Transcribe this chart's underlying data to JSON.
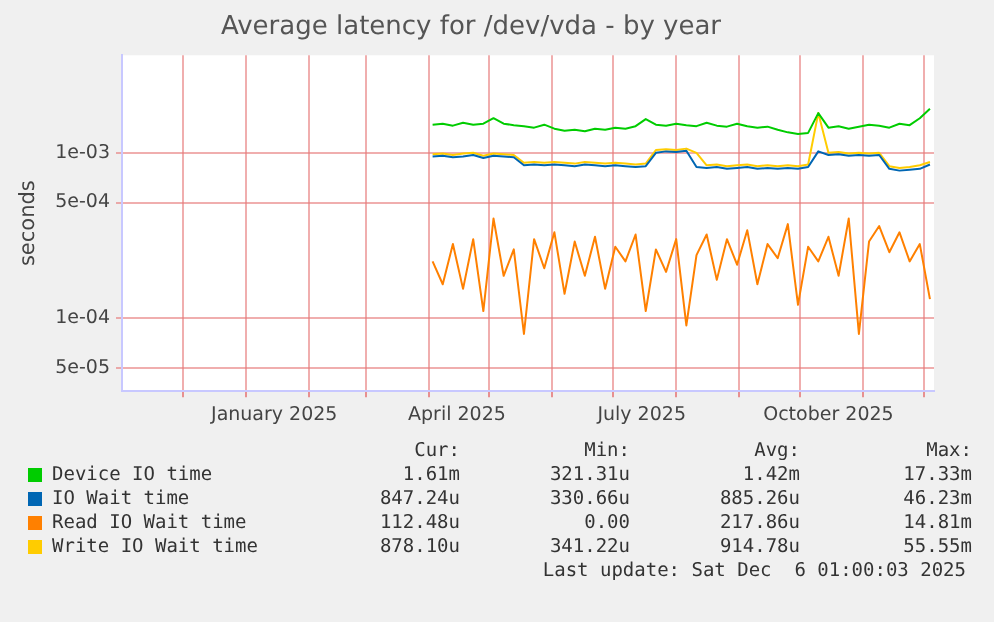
{
  "chart_data": {
    "type": "line",
    "title": "Average latency for /dev/vda - by year",
    "ylabel": "seconds",
    "log": "y",
    "grid": true,
    "legend": "bottom",
    "marker": "none",
    "line_style": "solid",
    "xlim": [
      "2024-11-01",
      "2025-12-06"
    ],
    "xticks": [
      {
        "value": "2024-12-01",
        "label": null
      },
      {
        "value": "2025-01-01",
        "label": null
      },
      {
        "value": "2025-02-01",
        "label": null
      },
      {
        "value": "2025-03-01",
        "label": null
      },
      {
        "value": "2025-04-01",
        "label": null
      },
      {
        "value": "2025-05-01",
        "label": null
      },
      {
        "value": "2025-06-01",
        "label": null
      },
      {
        "value": "2025-07-01",
        "label": null
      },
      {
        "value": "2025-08-01",
        "label": null
      },
      {
        "value": "2025-09-01",
        "label": null
      },
      {
        "value": "2025-10-01",
        "label": null
      },
      {
        "value": "2025-11-01",
        "label": null
      },
      {
        "value": "2025-12-01",
        "label": null
      },
      {
        "value": "2025-01-15",
        "label": "January 2025"
      },
      {
        "value": "2025-04-15",
        "label": "April 2025"
      },
      {
        "value": "2025-07-15",
        "label": "July 2025"
      },
      {
        "value": "2025-10-15",
        "label": "October 2025"
      }
    ],
    "ylim": [
      3.6e-05,
      0.0039
    ],
    "yticks": [
      {
        "value": 5e-05,
        "label": "5e-05"
      },
      {
        "value": 0.0001,
        "label": "1e-04"
      },
      {
        "value": 0.0005,
        "label": "5e-04"
      },
      {
        "value": 0.001,
        "label": "1e-03"
      }
    ],
    "x": [
      "2025-04-03",
      "2025-04-08",
      "2025-04-13",
      "2025-04-18",
      "2025-04-23",
      "2025-04-28",
      "2025-05-03",
      "2025-05-08",
      "2025-05-13",
      "2025-05-18",
      "2025-05-23",
      "2025-05-28",
      "2025-06-02",
      "2025-06-07",
      "2025-06-12",
      "2025-06-17",
      "2025-06-22",
      "2025-06-27",
      "2025-07-02",
      "2025-07-07",
      "2025-07-12",
      "2025-07-17",
      "2025-07-22",
      "2025-07-27",
      "2025-08-01",
      "2025-08-06",
      "2025-08-11",
      "2025-08-16",
      "2025-08-21",
      "2025-08-26",
      "2025-08-31",
      "2025-09-05",
      "2025-09-10",
      "2025-09-15",
      "2025-09-20",
      "2025-09-25",
      "2025-09-30",
      "2025-10-05",
      "2025-10-10",
      "2025-10-15",
      "2025-10-20",
      "2025-10-25",
      "2025-10-30",
      "2025-11-04",
      "2025-11-09",
      "2025-11-14",
      "2025-11-19",
      "2025-11-24",
      "2025-11-29",
      "2025-12-04"
    ],
    "series": [
      {
        "name": "Device IO time",
        "color": "#00cc00",
        "values": [
          0.00148,
          0.0015,
          0.00146,
          0.00152,
          0.00148,
          0.0015,
          0.00162,
          0.0015,
          0.00147,
          0.00145,
          0.00142,
          0.00148,
          0.0014,
          0.00136,
          0.00138,
          0.00135,
          0.0014,
          0.00138,
          0.00142,
          0.0014,
          0.00145,
          0.0016,
          0.00148,
          0.00146,
          0.0015,
          0.00147,
          0.00145,
          0.00152,
          0.00146,
          0.00144,
          0.0015,
          0.00145,
          0.00142,
          0.00144,
          0.00138,
          0.00133,
          0.0013,
          0.00132,
          0.00174,
          0.00142,
          0.00145,
          0.0014,
          0.00144,
          0.00148,
          0.00146,
          0.00142,
          0.0015,
          0.00147,
          0.00162,
          0.00185
        ]
      },
      {
        "name": "IO Wait time",
        "color": "#0066b3",
        "values": [
          0.00095,
          0.00096,
          0.00094,
          0.00095,
          0.00097,
          0.00093,
          0.00096,
          0.00095,
          0.00094,
          0.00084,
          0.00085,
          0.00084,
          0.00085,
          0.00084,
          0.00083,
          0.00085,
          0.00084,
          0.00083,
          0.00084,
          0.00083,
          0.00082,
          0.00083,
          0.001,
          0.00102,
          0.00101,
          0.00103,
          0.00082,
          0.00081,
          0.00082,
          0.0008,
          0.00081,
          0.00082,
          0.0008,
          0.00081,
          0.0008,
          0.00081,
          0.0008,
          0.00082,
          0.00102,
          0.00097,
          0.00098,
          0.00096,
          0.00097,
          0.00096,
          0.00097,
          0.0008,
          0.00078,
          0.00079,
          0.0008,
          0.00085
        ]
      },
      {
        "name": "Read IO Wait time",
        "color": "#ff8000",
        "values": [
          0.00022,
          0.00016,
          0.00028,
          0.00015,
          0.0003,
          0.00011,
          0.0004,
          0.00018,
          0.00026,
          8e-05,
          0.0003,
          0.0002,
          0.00033,
          0.00014,
          0.00029,
          0.00018,
          0.00031,
          0.00015,
          0.00027,
          0.00022,
          0.00032,
          0.00011,
          0.00026,
          0.00019,
          0.0003,
          9e-05,
          0.00024,
          0.00032,
          0.00017,
          0.0003,
          0.00021,
          0.00034,
          0.00016,
          0.00028,
          0.00023,
          0.00037,
          0.00012,
          0.00027,
          0.00022,
          0.00031,
          0.00018,
          0.0004,
          8e-05,
          0.00029,
          0.00036,
          0.00025,
          0.00033,
          0.00022,
          0.00028,
          0.00013
        ]
      },
      {
        "name": "Write IO Wait time",
        "color": "#ffcc00",
        "values": [
          0.00098,
          0.00099,
          0.00097,
          0.00099,
          0.001,
          0.00096,
          0.00099,
          0.00098,
          0.00097,
          0.00087,
          0.00088,
          0.00087,
          0.00088,
          0.00087,
          0.00086,
          0.00088,
          0.00087,
          0.00086,
          0.00087,
          0.00086,
          0.00085,
          0.00086,
          0.00104,
          0.00105,
          0.00104,
          0.00106,
          0.001,
          0.00084,
          0.00085,
          0.00083,
          0.00084,
          0.00085,
          0.00083,
          0.00084,
          0.00083,
          0.00084,
          0.00083,
          0.00085,
          0.00174,
          0.001,
          0.00101,
          0.00099,
          0.001,
          0.00099,
          0.001,
          0.00083,
          0.00081,
          0.00082,
          0.00084,
          0.00088
        ]
      }
    ],
    "annotations": [
      "Cur:",
      "Min:",
      "Avg:",
      "Max:",
      "1.61m",
      "321.31u",
      "1.42m",
      "17.33m",
      "847.24u",
      "330.66u",
      "885.26u",
      "46.23m",
      "112.48u",
      "0.00",
      "217.86u",
      "14.81m",
      "878.10u",
      "341.22u",
      "914.78u",
      "55.55m",
      "Last update: Sat Dec  6 01:00:03 2025"
    ]
  }
}
